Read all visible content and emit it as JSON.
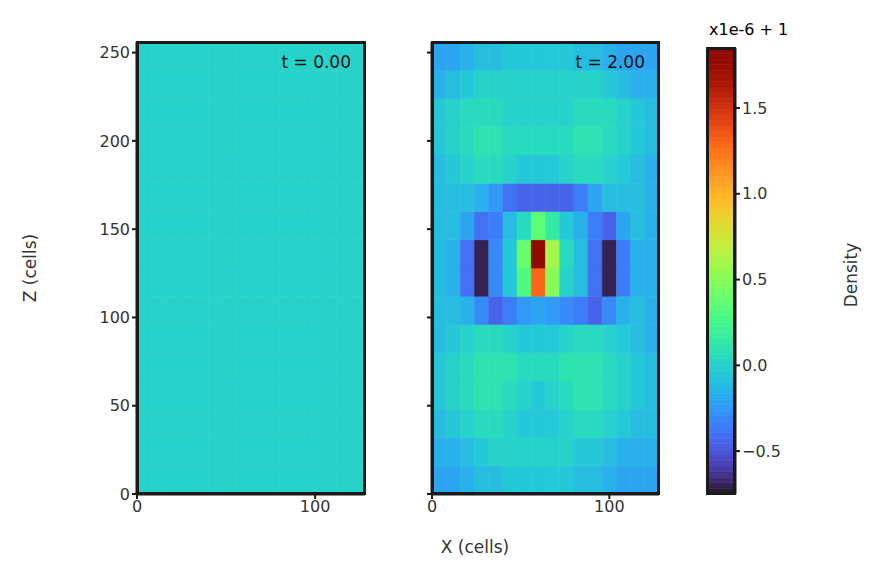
{
  "chart_data": [
    {
      "type": "heatmap",
      "title": "t = 0.00",
      "xlim": [
        0,
        128
      ],
      "ylim": [
        0,
        256
      ],
      "xticks": [
        0,
        100
      ],
      "yticks": [
        0,
        50,
        100,
        150,
        200,
        250
      ],
      "x_edges": [
        0,
        8,
        16,
        24,
        32,
        40,
        48,
        56,
        64,
        72,
        80,
        88,
        96,
        104,
        112,
        120,
        128
      ],
      "y_edges": [
        0,
        16,
        32,
        48,
        64,
        80,
        96,
        112,
        128,
        144,
        160,
        176,
        192,
        208,
        224,
        240,
        256
      ],
      "cells": [
        [
          0,
          0,
          0,
          0,
          0,
          0,
          0,
          0,
          0,
          0,
          0,
          0,
          0,
          0,
          0,
          0
        ],
        [
          0,
          0,
          0,
          0,
          0,
          0,
          0,
          0,
          0,
          0,
          0,
          0,
          0,
          0,
          0,
          0
        ],
        [
          0,
          0,
          0,
          0,
          0,
          0,
          0,
          0,
          0,
          0,
          0,
          0,
          0,
          0,
          0,
          0
        ],
        [
          0,
          0,
          0,
          0,
          0,
          0,
          0,
          0,
          0,
          0,
          0,
          0,
          0,
          0,
          0,
          0
        ],
        [
          0,
          0,
          0,
          0,
          0,
          0,
          0,
          0,
          0,
          0,
          0,
          0,
          0,
          0,
          0,
          0
        ],
        [
          0,
          0,
          0,
          0,
          0,
          0,
          0,
          0,
          0,
          0,
          0,
          0,
          0,
          0,
          0,
          0
        ],
        [
          0,
          0,
          0,
          0,
          0,
          0,
          0,
          0,
          0,
          0,
          0,
          0,
          0,
          0,
          0,
          0
        ],
        [
          0,
          0,
          0,
          0,
          0,
          0,
          0,
          0,
          0,
          0,
          0,
          0,
          0,
          0,
          0,
          0
        ],
        [
          0,
          0,
          0,
          0,
          0,
          0,
          0,
          0,
          0,
          0,
          0,
          0,
          0,
          0,
          0,
          0
        ],
        [
          0,
          0,
          0,
          0,
          0,
          0,
          0,
          0,
          0,
          0,
          0,
          0,
          0,
          0,
          0,
          0
        ],
        [
          0,
          0,
          0,
          0,
          0,
          0,
          0,
          0,
          0,
          0,
          0,
          0,
          0,
          0,
          0,
          0
        ],
        [
          0,
          0,
          0,
          0,
          0,
          0,
          0,
          0,
          0,
          0,
          0,
          0,
          0,
          0,
          0,
          0
        ],
        [
          0,
          0,
          0,
          0,
          0,
          0,
          0,
          0,
          0,
          0,
          0,
          0,
          0,
          0,
          0,
          0
        ],
        [
          0,
          0,
          0,
          0,
          0,
          0,
          0,
          0,
          0,
          0,
          0,
          0,
          0,
          0,
          0,
          0
        ],
        [
          0,
          0,
          0,
          0,
          0,
          0,
          0,
          0,
          0,
          0,
          0,
          0,
          0,
          0,
          0,
          0
        ],
        [
          0,
          0,
          0,
          0,
          0,
          0,
          0,
          0,
          0,
          0,
          0,
          0,
          0,
          0,
          0,
          0
        ]
      ]
    },
    {
      "type": "heatmap",
      "title": "t = 2.00",
      "xlim": [
        0,
        128
      ],
      "ylim": [
        0,
        256
      ],
      "xticks": [
        0,
        100
      ],
      "yticks": [
        0,
        50,
        100,
        150,
        200,
        250
      ],
      "tick_labels": "x",
      "x_edges": [
        0,
        8,
        16,
        24,
        32,
        40,
        48,
        56,
        64,
        72,
        80,
        88,
        96,
        104,
        112,
        120,
        128
      ],
      "y_edges": [
        0,
        16,
        32,
        48,
        64,
        80,
        96,
        112,
        128,
        144,
        160,
        176,
        192,
        208,
        224,
        240,
        256
      ],
      "cells": [
        [
          -0.2,
          -0.2,
          -0.15,
          -0.1,
          -0.1,
          -0.05,
          -0.05,
          -0.05,
          -0.05,
          -0.05,
          -0.1,
          -0.1,
          -0.15,
          -0.2,
          -0.2,
          -0.2
        ],
        [
          -0.15,
          -0.15,
          -0.1,
          -0.05,
          0,
          0,
          0,
          0,
          0,
          0,
          -0.05,
          -0.05,
          -0.1,
          -0.15,
          -0.15,
          -0.15
        ],
        [
          -0.1,
          -0.05,
          0,
          0.05,
          0.05,
          0,
          -0.05,
          -0.05,
          -0.05,
          0,
          0.05,
          0.05,
          0,
          -0.05,
          -0.1,
          -0.1
        ],
        [
          -0.05,
          0,
          0.05,
          0.1,
          0.1,
          0.05,
          0,
          -0.05,
          0,
          0.05,
          0.1,
          0.1,
          0.05,
          0,
          -0.05,
          -0.1
        ],
        [
          -0.05,
          0,
          0.05,
          0.1,
          0.1,
          0.1,
          0.05,
          0.05,
          0.05,
          0.1,
          0.1,
          0.1,
          0.05,
          0,
          -0.05,
          -0.1
        ],
        [
          -0.1,
          -0.05,
          0,
          0.05,
          0.05,
          0,
          -0.05,
          -0.05,
          -0.05,
          0,
          0.05,
          0.05,
          0,
          -0.05,
          -0.1,
          -0.15
        ],
        [
          -0.1,
          -0.1,
          -0.15,
          -0.3,
          -0.45,
          -0.35,
          -0.25,
          -0.2,
          -0.25,
          -0.3,
          -0.35,
          -0.45,
          -0.3,
          -0.15,
          -0.1,
          -0.15
        ],
        [
          -0.1,
          -0.15,
          -0.4,
          -0.7,
          -0.3,
          -0.05,
          0.3,
          1.3,
          0.5,
          0,
          -0.1,
          -0.4,
          -0.7,
          -0.35,
          -0.15,
          -0.15
        ],
        [
          -0.1,
          -0.15,
          -0.4,
          -0.7,
          -0.3,
          -0.05,
          0.4,
          1.8,
          0.6,
          0.05,
          -0.1,
          -0.4,
          -0.7,
          -0.35,
          -0.15,
          -0.15
        ],
        [
          -0.1,
          -0.1,
          -0.2,
          -0.4,
          -0.35,
          -0.1,
          0.05,
          0.35,
          0.15,
          -0.05,
          -0.15,
          -0.35,
          -0.45,
          -0.2,
          -0.1,
          -0.15
        ],
        [
          -0.1,
          -0.1,
          -0.1,
          -0.15,
          -0.25,
          -0.4,
          -0.45,
          -0.45,
          -0.45,
          -0.45,
          -0.35,
          -0.2,
          -0.1,
          -0.1,
          -0.1,
          -0.15
        ],
        [
          -0.1,
          -0.05,
          0,
          0.05,
          0.05,
          0,
          -0.05,
          -0.05,
          -0.05,
          0,
          0.05,
          0.05,
          0,
          -0.05,
          -0.1,
          -0.15
        ],
        [
          -0.05,
          0,
          0.05,
          0.1,
          0.1,
          0.05,
          0.05,
          0.05,
          0.05,
          0.05,
          0.1,
          0.1,
          0.05,
          0,
          -0.05,
          -0.1
        ],
        [
          -0.05,
          0,
          0.05,
          0.05,
          0.05,
          0,
          0,
          0,
          0,
          0,
          0.05,
          0.05,
          0.05,
          0,
          -0.05,
          -0.1
        ],
        [
          -0.15,
          -0.1,
          -0.05,
          0,
          0,
          0,
          0,
          0,
          0,
          0,
          0,
          0,
          -0.05,
          -0.1,
          -0.15,
          -0.15
        ],
        [
          -0.2,
          -0.2,
          -0.15,
          -0.1,
          -0.1,
          -0.05,
          -0.05,
          -0.05,
          -0.05,
          -0.05,
          -0.1,
          -0.1,
          -0.15,
          -0.2,
          -0.2,
          -0.2
        ]
      ]
    }
  ],
  "x_label": "X (cells)",
  "y_label": "Z (cells)",
  "colorbar": {
    "label": "Density",
    "offset_label": "x1e-6 + 1",
    "range": [
      -0.75,
      1.85
    ],
    "ticks": [
      {
        "value": -0.5,
        "label": "−0.5"
      },
      {
        "value": 0,
        "label": "0.0"
      },
      {
        "value": 0.5,
        "label": "0.5"
      },
      {
        "value": 1,
        "label": "1.0"
      },
      {
        "value": 1.5,
        "label": "1.5"
      }
    ]
  }
}
